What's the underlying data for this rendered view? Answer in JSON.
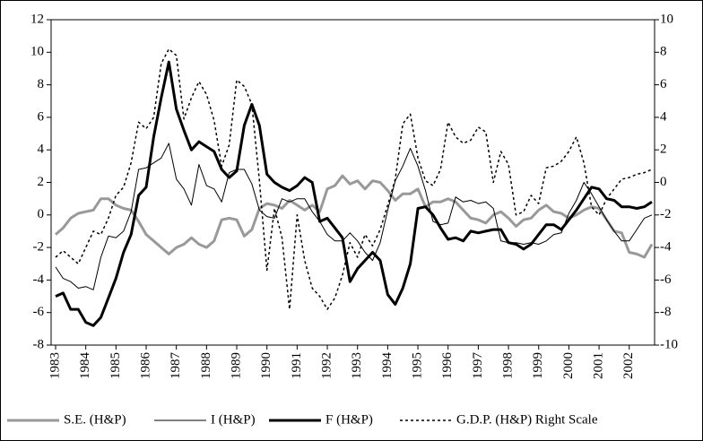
{
  "chart_data": {
    "type": "line",
    "categories": [
      "1983",
      null,
      null,
      null,
      "1984",
      null,
      null,
      null,
      "1985",
      null,
      null,
      null,
      "1986",
      null,
      null,
      null,
      "1987",
      null,
      null,
      null,
      "1988",
      null,
      null,
      null,
      "1989",
      null,
      null,
      null,
      "1990",
      null,
      null,
      null,
      "1991",
      null,
      null,
      null,
      "1992",
      null,
      null,
      null,
      "1993",
      null,
      null,
      null,
      "1994",
      null,
      null,
      null,
      "1995",
      null,
      null,
      null,
      "1996",
      null,
      null,
      null,
      "1997",
      null,
      null,
      null,
      "1998",
      null,
      null,
      null,
      "1999",
      null,
      null,
      null,
      "2000",
      null,
      null,
      null,
      "2001",
      null,
      null,
      null,
      "2002",
      null,
      null,
      null
    ],
    "ylim": [
      -8,
      12
    ],
    "yticks": [
      -8,
      -6,
      -4,
      -2,
      0,
      2,
      4,
      6,
      8,
      10,
      12
    ],
    "y2lim": [
      -10,
      10
    ],
    "y2ticks": [
      -10,
      -8,
      -6,
      -4,
      -2,
      0,
      2,
      4,
      6,
      8,
      10
    ],
    "series": [
      {
        "name": "S.E. (H&P)",
        "color": "#999999",
        "line_width": 3,
        "line_style": "solid",
        "values": [
          -1.2,
          -0.8,
          -0.2,
          0.1,
          0.2,
          0.3,
          1.0,
          1.0,
          0.6,
          0.4,
          0.3,
          -0.4,
          -1.2,
          -1.6,
          -2.0,
          -2.4,
          -2.0,
          -1.8,
          -1.4,
          -1.8,
          -2.0,
          -1.6,
          -0.3,
          -0.2,
          -0.3,
          -1.3,
          -0.9,
          0.4,
          0.7,
          0.6,
          0.4,
          0.9,
          0.6,
          0.3,
          0.6,
          0.2,
          1.6,
          1.8,
          2.4,
          1.9,
          2.1,
          1.6,
          2.1,
          2.0,
          1.5,
          0.9,
          1.3,
          1.3,
          1.6,
          0.5,
          0.8,
          0.8,
          1.0,
          0.8,
          0.3,
          -0.2,
          -0.3,
          -0.5,
          0.0,
          0.2,
          -0.2,
          -0.7,
          -0.3,
          -0.2,
          0.3,
          0.6,
          0.2,
          0.1,
          -0.2,
          0.0,
          0.3,
          0.5,
          0.4,
          -0.3,
          -1.0,
          -1.1,
          -2.3,
          -2.4,
          -2.6,
          -1.8
        ]
      },
      {
        "name": "I (H&P)",
        "color": "#000000",
        "line_width": 1,
        "line_style": "solid",
        "values": [
          -3.2,
          -3.9,
          -4.1,
          -4.5,
          -4.4,
          -4.6,
          -2.6,
          -1.3,
          -1.4,
          -1.0,
          0.2,
          2.8,
          2.9,
          3.2,
          3.5,
          4.4,
          2.2,
          1.6,
          0.6,
          3.1,
          1.8,
          1.6,
          0.8,
          2.6,
          2.8,
          2.8,
          1.9,
          0.3,
          -0.1,
          -0.2,
          1.0,
          0.8,
          1.0,
          1.0,
          0.2,
          -0.4,
          -1.2,
          -1.6,
          -1.6,
          -1.1,
          -1.6,
          -2.3,
          -2.8,
          -1.7,
          0.3,
          2.1,
          3.0,
          4.1,
          3.0,
          1.5,
          -0.4,
          -0.6,
          -0.5,
          1.1,
          0.8,
          0.9,
          0.7,
          0.8,
          0.4,
          -1.6,
          -1.7,
          -1.7,
          -1.8,
          -1.7,
          -1.8,
          -1.6,
          -1.2,
          -1.1,
          0.1,
          0.9,
          2.0,
          1.3,
          0.5,
          -0.3,
          -1.0,
          -1.6,
          -1.6,
          -0.9,
          -0.2,
          0.0
        ]
      },
      {
        "name": "F (H&P)",
        "color": "#000000",
        "line_width": 3,
        "line_style": "solid",
        "values": [
          -5.0,
          -4.8,
          -5.8,
          -5.8,
          -6.6,
          -6.8,
          -6.3,
          -5.1,
          -3.9,
          -2.3,
          -1.2,
          1.2,
          1.7,
          4.8,
          7.2,
          9.4,
          6.5,
          5.2,
          4.0,
          4.5,
          4.2,
          3.9,
          2.8,
          2.3,
          2.7,
          5.5,
          6.8,
          5.5,
          2.5,
          2.0,
          1.7,
          1.5,
          1.8,
          2.3,
          2.0,
          -0.4,
          -0.2,
          -0.8,
          -1.4,
          -4.1,
          -3.3,
          -2.8,
          -2.3,
          -2.8,
          -4.9,
          -5.5,
          -4.5,
          -3.0,
          0.4,
          0.5,
          0.0,
          -0.8,
          -1.5,
          -1.4,
          -1.6,
          -1.0,
          -1.1,
          -1.0,
          -0.9,
          -0.9,
          -1.7,
          -1.8,
          -2.1,
          -1.8,
          -1.2,
          -0.6,
          -0.6,
          -0.9,
          -0.3,
          0.3,
          1.0,
          1.7,
          1.6,
          1.0,
          0.9,
          0.5,
          0.5,
          0.4,
          0.5,
          0.8
        ]
      },
      {
        "name": "G.D.P. (H&P) Right Scale",
        "color": "#000000",
        "line_width": 1.5,
        "line_style": "dotted",
        "axis": "y2",
        "values": [
          -4.6,
          -4.2,
          -4.6,
          -5.0,
          -4.0,
          -3.0,
          -3.2,
          -2.2,
          -0.8,
          -0.3,
          1.2,
          3.7,
          3.3,
          4.0,
          7.3,
          8.2,
          7.8,
          3.9,
          5.2,
          6.2,
          5.4,
          3.8,
          1.0,
          2.3,
          6.3,
          5.9,
          4.8,
          0.1,
          -5.4,
          -1.6,
          -3.4,
          -7.8,
          -2.0,
          -4.8,
          -6.5,
          -7.0,
          -7.8,
          -7.1,
          -5.7,
          -3.7,
          -4.6,
          -3.2,
          -3.9,
          -2.9,
          -1.4,
          0.2,
          3.6,
          4.2,
          1.5,
          0.1,
          -0.2,
          0.8,
          3.7,
          2.8,
          2.4,
          2.6,
          3.4,
          3.1,
          0.0,
          1.9,
          1.1,
          -2.0,
          -1.8,
          -0.8,
          -1.3,
          0.9,
          1.0,
          1.3,
          1.9,
          2.8,
          1.2,
          -1.5,
          -2.0,
          -1.0,
          -0.4,
          0.2,
          0.3,
          0.5,
          0.6,
          0.8
        ]
      }
    ],
    "legend": "bottom"
  }
}
